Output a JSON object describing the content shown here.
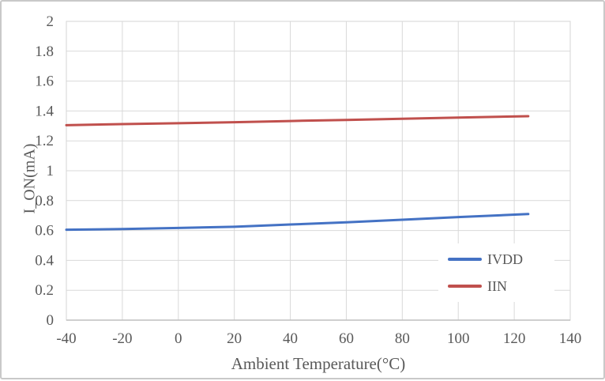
{
  "frame": {
    "background": "#ffffff",
    "border_color": "#c9c9c9"
  },
  "chart_data": {
    "type": "line",
    "title": "",
    "xlabel": "Ambient Temperature(°C)",
    "ylabel": "I_ON(mA)",
    "xlim": [
      -40,
      140
    ],
    "ylim": [
      0,
      2
    ],
    "x_ticks": [
      -40,
      -20,
      0,
      20,
      40,
      60,
      80,
      100,
      120,
      140
    ],
    "y_ticks": [
      0,
      0.2,
      0.4,
      0.6,
      0.8,
      1,
      1.2,
      1.4,
      1.6,
      1.8,
      2
    ],
    "grid": true,
    "legend_position": "inside-right",
    "x": [
      -40,
      -20,
      0,
      20,
      40,
      60,
      80,
      100,
      125
    ],
    "series": [
      {
        "name": "IVDD",
        "color": "#4472C4",
        "values": [
          0.605,
          0.61,
          0.617,
          0.625,
          0.64,
          0.655,
          0.672,
          0.69,
          0.71
        ]
      },
      {
        "name": "IIN",
        "color": "#C0504D",
        "values": [
          1.305,
          1.312,
          1.318,
          1.325,
          1.333,
          1.34,
          1.348,
          1.356,
          1.365
        ]
      }
    ],
    "colors": {
      "gridline": "#d9d9d9",
      "plot_border": "#d6d6d6",
      "axis_line": "#bfbfbf",
      "tick_text": "#595959",
      "axis_title_text": "#595959",
      "legend_background": "#ffffff"
    }
  }
}
